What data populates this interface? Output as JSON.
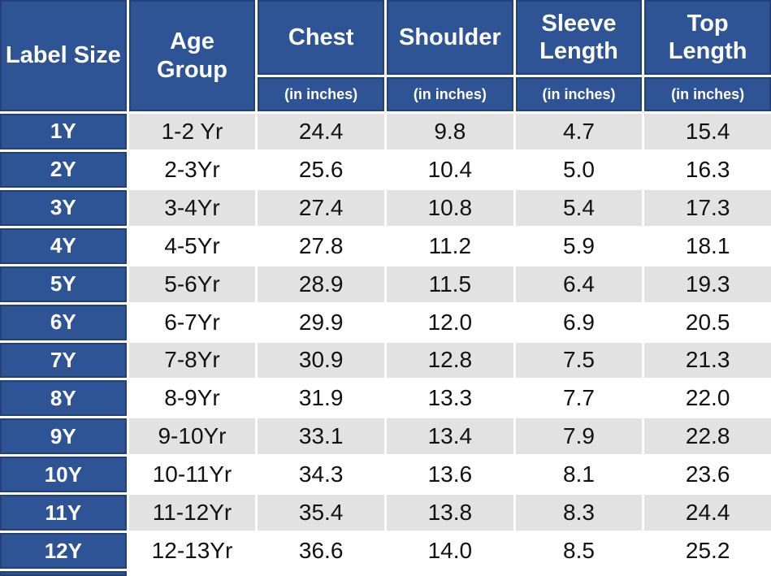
{
  "chart_data": {
    "type": "table",
    "columns": [
      {
        "label": "Label Size",
        "sub": ""
      },
      {
        "label": "Age Group",
        "sub": ""
      },
      {
        "label": "Chest",
        "sub": "(in inches)"
      },
      {
        "label": "Shoulder",
        "sub": "(in inches)"
      },
      {
        "label": "Sleeve Length",
        "sub": "(in inches)"
      },
      {
        "label": "Top Length",
        "sub": "(in inches)"
      }
    ],
    "rows": [
      [
        "1Y",
        "1-2 Yr",
        "24.4",
        "9.8",
        "4.7",
        "15.4"
      ],
      [
        "2Y",
        "2-3Yr",
        "25.6",
        "10.4",
        "5.0",
        "16.3"
      ],
      [
        "3Y",
        "3-4Yr",
        "27.4",
        "10.8",
        "5.4",
        "17.3"
      ],
      [
        "4Y",
        "4-5Yr",
        "27.8",
        "11.2",
        "5.9",
        "18.1"
      ],
      [
        "5Y",
        "5-6Yr",
        "28.9",
        "11.5",
        "6.4",
        "19.3"
      ],
      [
        "6Y",
        "6-7Yr",
        "29.9",
        "12.0",
        "6.9",
        "20.5"
      ],
      [
        "7Y",
        "7-8Yr",
        "30.9",
        "12.8",
        "7.5",
        "21.3"
      ],
      [
        "8Y",
        "8-9Yr",
        "31.9",
        "13.3",
        "7.7",
        "22.0"
      ],
      [
        "9Y",
        "9-10Yr",
        "33.1",
        "13.4",
        "7.9",
        "22.8"
      ],
      [
        "10Y",
        "10-11Yr",
        "34.3",
        "13.6",
        "8.1",
        "23.6"
      ],
      [
        "11Y",
        "11-12Yr",
        "35.4",
        "13.8",
        "8.3",
        "24.4"
      ],
      [
        "12Y",
        "12-13Yr",
        "36.6",
        "14.0",
        "8.5",
        "25.2"
      ]
    ],
    "layout": {
      "stripe_pattern": "odd rows gray, even rows white",
      "first_column_style": "blue background, white bold text"
    },
    "colors": {
      "header_blue": "#2F5496",
      "header_border": "#1F3864",
      "stripe_gray": "#E2E2E2",
      "row_white": "#FFFFFF",
      "text_dark": "#111111",
      "text_white": "#FFFFFF"
    }
  }
}
